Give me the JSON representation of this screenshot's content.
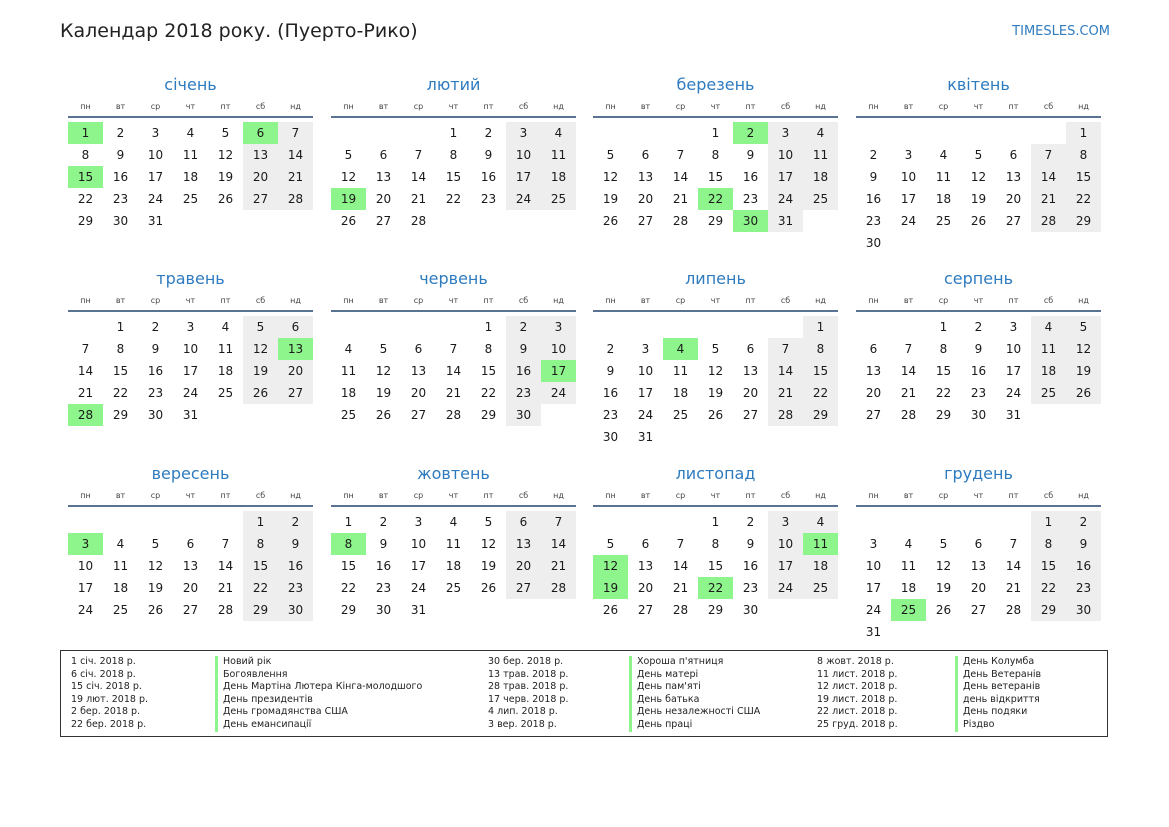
{
  "header": {
    "title": "Календар 2018 року. (Пуерто-Рико)",
    "site": "TIMESLES.COM"
  },
  "weekdays": [
    "пн",
    "вт",
    "ср",
    "чт",
    "пт",
    "сб",
    "нд"
  ],
  "months": [
    {
      "name": "січень",
      "offset": 0,
      "days": 31,
      "holidays": [
        1,
        6,
        15
      ]
    },
    {
      "name": "лютий",
      "offset": 3,
      "days": 28,
      "holidays": [
        19
      ]
    },
    {
      "name": "березень",
      "offset": 3,
      "days": 31,
      "holidays": [
        2,
        22,
        30
      ]
    },
    {
      "name": "квітень",
      "offset": 6,
      "days": 30,
      "holidays": []
    },
    {
      "name": "травень",
      "offset": 1,
      "days": 31,
      "holidays": [
        13,
        28
      ]
    },
    {
      "name": "червень",
      "offset": 4,
      "days": 30,
      "holidays": [
        17
      ]
    },
    {
      "name": "липень",
      "offset": 6,
      "days": 31,
      "holidays": [
        4
      ]
    },
    {
      "name": "серпень",
      "offset": 2,
      "days": 31,
      "holidays": []
    },
    {
      "name": "вересень",
      "offset": 5,
      "days": 30,
      "holidays": [
        3
      ]
    },
    {
      "name": "жовтень",
      "offset": 0,
      "days": 31,
      "holidays": [
        8
      ]
    },
    {
      "name": "листопад",
      "offset": 3,
      "days": 30,
      "holidays": [
        11,
        12,
        19,
        22
      ]
    },
    {
      "name": "грудень",
      "offset": 5,
      "days": 31,
      "holidays": [
        25
      ]
    }
  ],
  "holiday_list": [
    {
      "date": "1 січ. 2018 р.",
      "name": "Новий рік"
    },
    {
      "date": "6 січ. 2018 р.",
      "name": "Богоявлення"
    },
    {
      "date": "15 січ. 2018 р.",
      "name": "День Мартіна Лютера Кінга-молодшого"
    },
    {
      "date": "19 лют. 2018 р.",
      "name": "День президентів"
    },
    {
      "date": "2 бер. 2018 р.",
      "name": "День громадянства США"
    },
    {
      "date": "22 бер. 2018 р.",
      "name": "День емансипації"
    },
    {
      "date": "30 бер. 2018 р.",
      "name": "Хороша п'ятниця"
    },
    {
      "date": "13 трав. 2018 р.",
      "name": "День матері"
    },
    {
      "date": "28 трав. 2018 р.",
      "name": "День пам'яті"
    },
    {
      "date": "17 черв. 2018 р.",
      "name": "День батька"
    },
    {
      "date": "4 лип. 2018 р.",
      "name": "День незалежності США"
    },
    {
      "date": "3 вер. 2018 р.",
      "name": "День праці"
    },
    {
      "date": "8 жовт. 2018 р.",
      "name": "День Колумба"
    },
    {
      "date": "11 лист. 2018 р.",
      "name": "День Ветеранів"
    },
    {
      "date": "12 лист. 2018 р.",
      "name": "День ветеранів"
    },
    {
      "date": "19 лист. 2018 р.",
      "name": "день відкриття"
    },
    {
      "date": "22 лист. 2018 р.",
      "name": "День подяки"
    },
    {
      "date": "25 груд. 2018 р.",
      "name": "Різдво"
    }
  ]
}
